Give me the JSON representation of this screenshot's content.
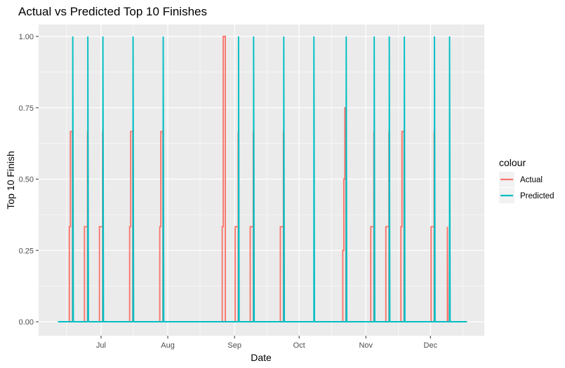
{
  "chart_data": {
    "type": "line",
    "title": "Actual vs Predicted Top 10 Finishes",
    "xlabel": "Date",
    "ylabel": "Top 10 Finish",
    "x_axis_type": "date",
    "xlim": [
      "2024-06-02",
      "2024-12-26"
    ],
    "ylim": [
      0,
      1
    ],
    "x_ticks": [
      {
        "date": "2024-07-01",
        "label": "Jul"
      },
      {
        "date": "2024-08-01",
        "label": "Aug"
      },
      {
        "date": "2024-09-01",
        "label": "Sep"
      },
      {
        "date": "2024-10-01",
        "label": "Oct"
      },
      {
        "date": "2024-11-01",
        "label": "Nov"
      },
      {
        "date": "2024-12-01",
        "label": "Dec"
      }
    ],
    "y_ticks": [
      {
        "value": 0,
        "label": "0.00"
      },
      {
        "value": 0.25,
        "label": "0.25"
      },
      {
        "value": 0.5,
        "label": "0.50"
      },
      {
        "value": 0.75,
        "label": "0.75"
      },
      {
        "value": 1,
        "label": "1.00"
      }
    ],
    "grid": true,
    "background": "#ebebeb",
    "legend": {
      "title": "colour",
      "position": "right"
    },
    "x_start": "2024-06-11",
    "x_end": "2024-12-18",
    "series": [
      {
        "name": "Actual",
        "color": "#f8766d",
        "spikes": [
          {
            "date": "2024-06-17",
            "steps": [
              0.333,
              0.667,
              0.667,
              0.333
            ]
          },
          {
            "date": "2024-06-24",
            "steps": [
              0.333,
              0.667
            ]
          },
          {
            "date": "2024-07-01",
            "steps": [
              0.333,
              0.667
            ]
          },
          {
            "date": "2024-07-15",
            "steps": [
              0.333,
              0.667,
              0.667,
              0.333
            ]
          },
          {
            "date": "2024-07-29",
            "steps": [
              0.333,
              0.667,
              0.667,
              0.333
            ]
          },
          {
            "date": "2024-08-27",
            "steps": [
              0.333,
              1.0,
              1.0,
              0.333
            ]
          },
          {
            "date": "2024-09-02",
            "steps": [
              0.333,
              0.667
            ]
          },
          {
            "date": "2024-09-09",
            "steps": [
              0.333,
              0.667
            ]
          },
          {
            "date": "2024-09-23",
            "steps": [
              0.333,
              0.667
            ]
          },
          {
            "date": "2024-10-22",
            "steps": [
              0.25,
              0.5,
              0.75,
              0.333
            ]
          },
          {
            "date": "2024-11-04",
            "steps": [
              0.333,
              0.667
            ]
          },
          {
            "date": "2024-11-11",
            "steps": [
              0.333,
              0.667
            ]
          },
          {
            "date": "2024-11-18",
            "steps": [
              0.333,
              0.667,
              0.667,
              0.333
            ]
          },
          {
            "date": "2024-12-02",
            "steps": [
              0.333,
              0.667
            ]
          },
          {
            "date": "2024-12-09",
            "steps": [
              0.333
            ]
          }
        ]
      },
      {
        "name": "Predicted",
        "color": "#00bfc4",
        "spikes": [
          {
            "date": "2024-06-18",
            "steps": [
              1.0
            ]
          },
          {
            "date": "2024-06-25",
            "steps": [
              1.0
            ]
          },
          {
            "date": "2024-07-02",
            "steps": [
              1.0
            ]
          },
          {
            "date": "2024-07-16",
            "steps": [
              1.0
            ]
          },
          {
            "date": "2024-07-30",
            "steps": [
              1.0
            ]
          },
          {
            "date": "2024-09-03",
            "steps": [
              1.0
            ]
          },
          {
            "date": "2024-09-10",
            "steps": [
              1.0
            ]
          },
          {
            "date": "2024-09-24",
            "steps": [
              1.0
            ]
          },
          {
            "date": "2024-10-08",
            "steps": [
              1.0
            ]
          },
          {
            "date": "2024-10-23",
            "steps": [
              1.0
            ]
          },
          {
            "date": "2024-11-05",
            "steps": [
              1.0
            ]
          },
          {
            "date": "2024-11-12",
            "steps": [
              1.0
            ]
          },
          {
            "date": "2024-11-19",
            "steps": [
              1.0
            ]
          },
          {
            "date": "2024-12-03",
            "steps": [
              1.0
            ]
          },
          {
            "date": "2024-12-10",
            "steps": [
              1.0
            ]
          }
        ]
      }
    ]
  }
}
